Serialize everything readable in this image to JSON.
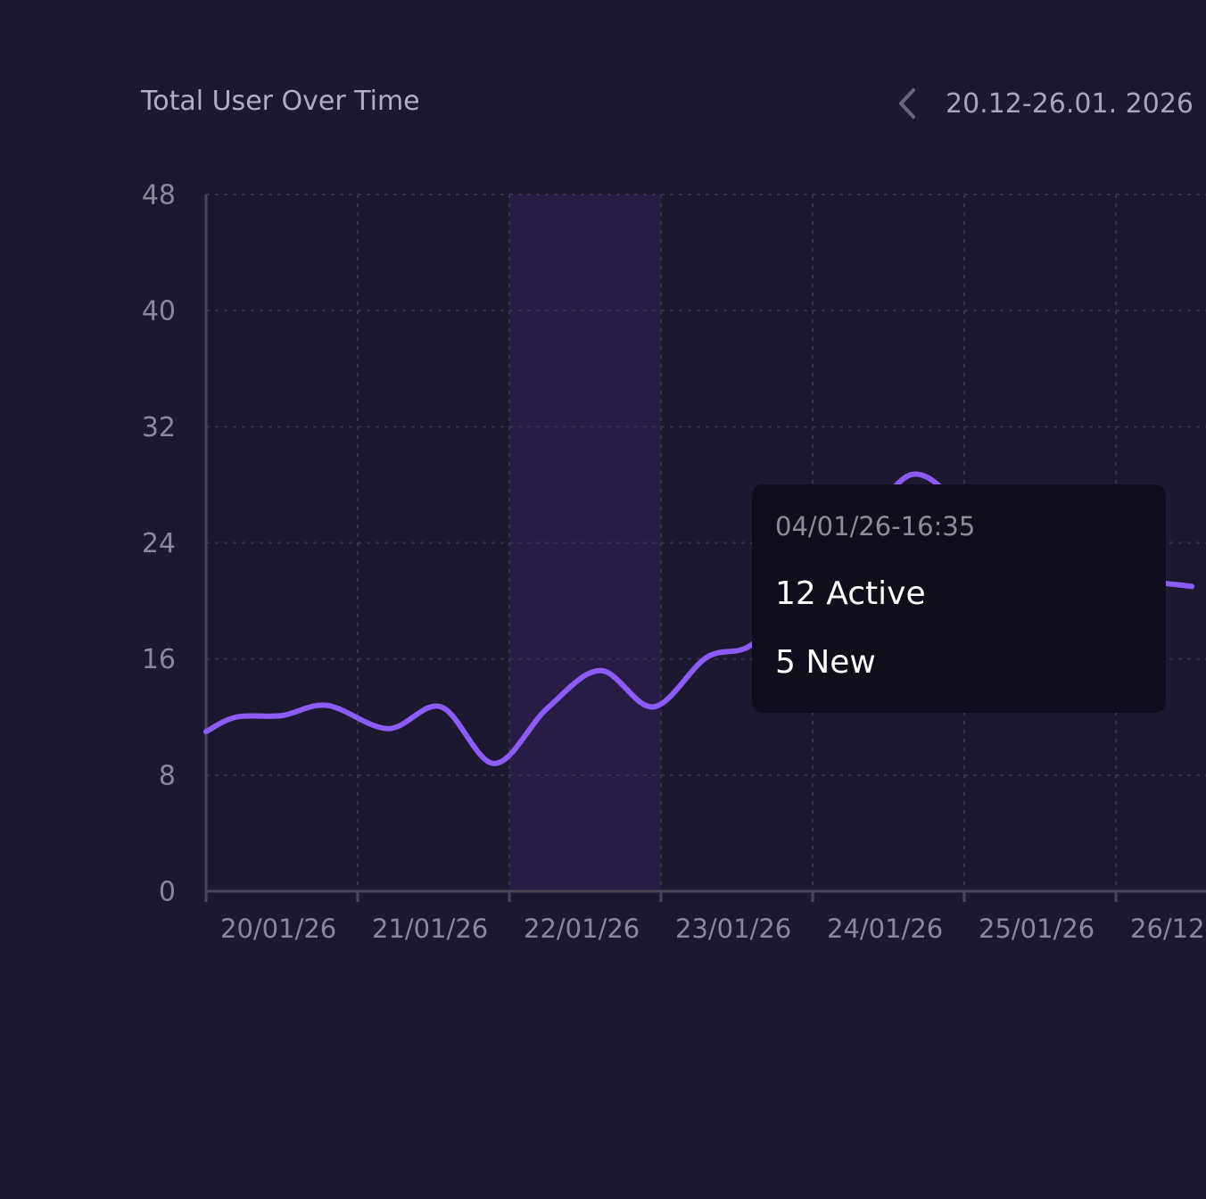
{
  "header": {
    "title": "Total User Over Time",
    "date_range": "20.12-26.01. 2026"
  },
  "tooltip": {
    "timestamp": "04/01/26-16:35",
    "active_label": "12 Active",
    "new_label": "5 New"
  },
  "colors": {
    "background": "#1c1830",
    "line": "#8b5cf6",
    "highlight_band": "#261c46",
    "grid": "#37334a",
    "axis": "#4a4658",
    "tooltip_bg": "#100e1c"
  },
  "chart_data": {
    "type": "line",
    "title": "Total User Over Time",
    "categories": [
      "20/01/26",
      "21/01/26",
      "22/01/26",
      "23/01/26",
      "24/01/26",
      "25/01/26",
      "26/12"
    ],
    "y_ticks": [
      0,
      8,
      16,
      24,
      32,
      40,
      48
    ],
    "ylim": [
      0,
      48
    ],
    "grid": true,
    "highlighted_category": "22/01/26",
    "series": [
      {
        "x": [
          0,
          0.2,
          0.5,
          0.8,
          1.2,
          1.55,
          1.9,
          2.25,
          2.6,
          2.95,
          3.3,
          3.6,
          3.95,
          4.3,
          4.65,
          5.0,
          5.35,
          5.75,
          6.1,
          6.5
        ],
        "values": [
          11,
          12,
          12.1,
          12.8,
          11.2,
          12.7,
          8.8,
          12.6,
          15.2,
          12.7,
          16.1,
          17,
          21,
          24.5,
          28.7,
          26.5,
          24,
          23,
          21.6,
          21
        ]
      }
    ]
  }
}
